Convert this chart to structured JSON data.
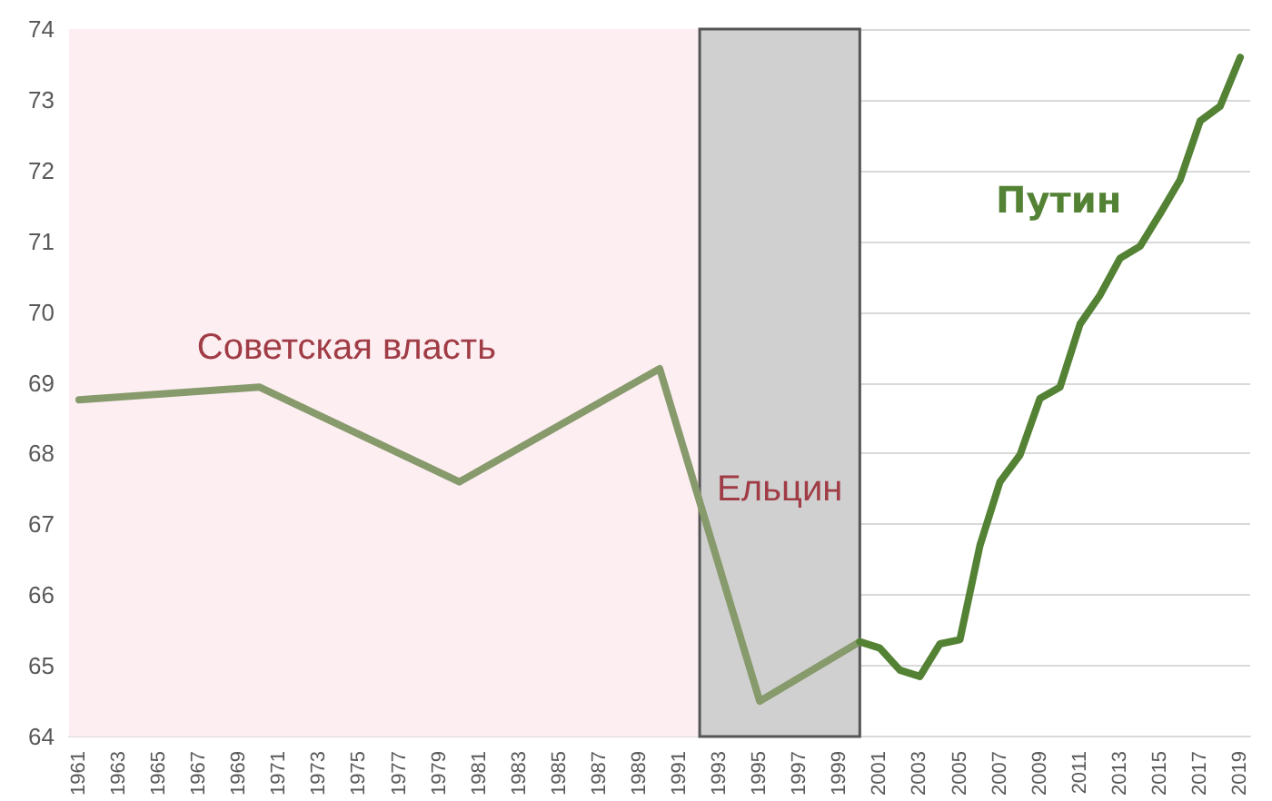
{
  "chart_data": {
    "type": "line",
    "xlim": [
      1960.5,
      2019.5
    ],
    "xticks": [
      1961,
      1963,
      1965,
      1967,
      1969,
      1971,
      1973,
      1975,
      1977,
      1979,
      1981,
      1983,
      1985,
      1987,
      1989,
      1991,
      1993,
      1995,
      1997,
      1999,
      2001,
      2003,
      2005,
      2007,
      2009,
      2011,
      2013,
      2015,
      2017,
      2019
    ],
    "ylim": [
      64,
      74
    ],
    "yticks": [
      64,
      65,
      66,
      67,
      68,
      69,
      70,
      71,
      72,
      73,
      74
    ],
    "grid": "y",
    "marker": "none",
    "line_style": "solid",
    "series": [
      {
        "color": "#879a6b",
        "x": [
          1961,
          1970,
          1980,
          1990,
          1995,
          2000
        ],
        "values": [
          68.76,
          68.94,
          67.6,
          69.2,
          64.5,
          65.34
        ]
      },
      {
        "color": "#548235",
        "x": [
          2000,
          2001,
          2002,
          2003,
          2004,
          2005,
          2006,
          2007,
          2008,
          2009,
          2010,
          2011,
          2012,
          2013,
          2014,
          2015,
          2016,
          2017,
          2018,
          2019
        ],
        "values": [
          65.34,
          65.25,
          64.94,
          64.85,
          65.31,
          65.37,
          66.7,
          67.6,
          67.98,
          68.78,
          68.94,
          69.83,
          70.24,
          70.76,
          70.93,
          71.39,
          71.87,
          72.7,
          72.91,
          73.6
        ]
      }
    ],
    "bands": [
      {
        "axis": "x",
        "from": 1960.5,
        "to": 1992,
        "label": "Советская власть",
        "color": "#fdeef2"
      },
      {
        "axis": "x",
        "from": 1992,
        "to": 2000,
        "label": "Ельцин",
        "color": "#d0d0d0"
      }
    ],
    "annotations": [
      "Путин"
    ]
  }
}
